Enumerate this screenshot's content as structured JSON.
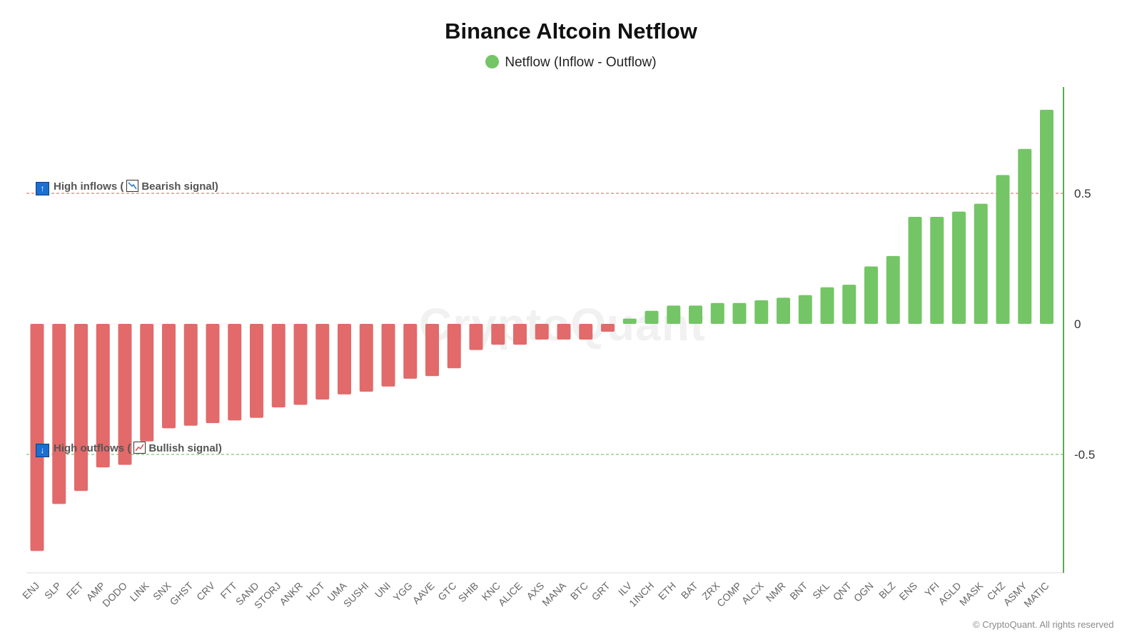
{
  "title": "Binance Altcoin Netflow",
  "legend_label": "Netflow (Inflow - Outflow)",
  "watermark": "CryptoQuant",
  "copyright": "© CryptoQuant. All rights reserved",
  "annotations": {
    "high_inflows": "High inflows",
    "bearish": "Bearish signal",
    "high_outflows": "High outflows",
    "bullish": "Bullish signal"
  },
  "colors": {
    "positive": "#74c566",
    "negative": "#e26a6a",
    "inflow_line": "#e87a7a",
    "outflow_line": "#7acb6e",
    "axis": "#5aaa55"
  },
  "chart_data": {
    "type": "bar",
    "title": "Binance Altcoin Netflow",
    "series": [
      {
        "name": "Netflow (Inflow - Outflow)",
        "values": [
          -0.87,
          -0.69,
          -0.64,
          -0.55,
          -0.54,
          -0.45,
          -0.4,
          -0.39,
          -0.38,
          -0.37,
          -0.36,
          -0.32,
          -0.31,
          -0.29,
          -0.27,
          -0.26,
          -0.24,
          -0.21,
          -0.2,
          -0.17,
          -0.1,
          -0.08,
          -0.08,
          -0.06,
          -0.06,
          -0.06,
          -0.03,
          0.02,
          0.05,
          0.07,
          0.07,
          0.08,
          0.08,
          0.09,
          0.1,
          0.11,
          0.14,
          0.15,
          0.22,
          0.26,
          0.41,
          0.41,
          0.43,
          0.46,
          0.57,
          0.67,
          0.82
        ]
      }
    ],
    "categories": [
      "ENJ",
      "SLP",
      "FET",
      "AMP",
      "DODO",
      "LINK",
      "SNX",
      "GHST",
      "CRV",
      "FTT",
      "SAND",
      "STORJ",
      "ANKR",
      "HOT",
      "UMA",
      "SUSHI",
      "UNI",
      "YGG",
      "AAVE",
      "GTC",
      "SHIB",
      "KNC",
      "ALICE",
      "AXS",
      "MANA",
      "BTC",
      "GRT",
      "ILV",
      "1INCH",
      "ETH",
      "BAT",
      "ZRX",
      "COMP",
      "ALCX",
      "NMR",
      "BNT",
      "SKL",
      "QNT",
      "OGN",
      "BLZ",
      "ENS",
      "YFI",
      "AGLD",
      "MASK",
      "CHZ",
      "ASMY",
      "MATIC"
    ],
    "yticks": [
      "0.5",
      "0",
      "-0.5"
    ],
    "ylim": [
      -0.95,
      0.9
    ],
    "reference_lines": [
      {
        "value": 0.5,
        "label": "High inflows (Bearish signal)"
      },
      {
        "value": -0.5,
        "label": "High outflows (Bullish signal)"
      }
    ],
    "legend_position": "top-center",
    "grid": false
  }
}
